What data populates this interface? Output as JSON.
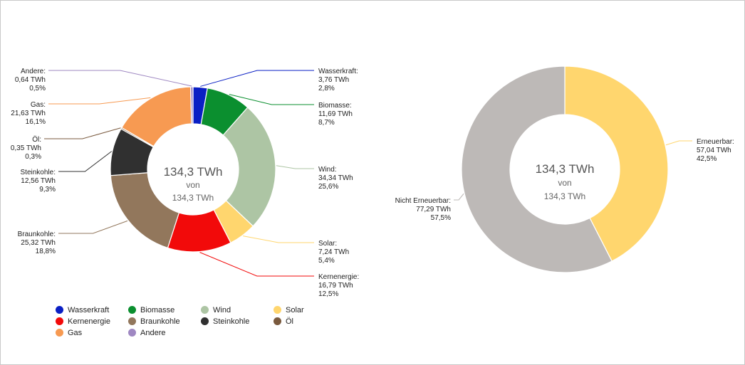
{
  "chart_data": [
    {
      "type": "pie",
      "variant": "donut",
      "total_label": "134,3 TWh",
      "of_label": "von",
      "of_total_label": "134,3 TWh",
      "unit": "TWh",
      "slices": [
        {
          "name": "Wasserkraft",
          "value": 3.76,
          "value_label": "3,76 TWh",
          "percent_label": "2,8%",
          "color": "#0a1fc4"
        },
        {
          "name": "Biomasse",
          "value": 11.69,
          "value_label": "11,69 TWh",
          "percent_label": "8,7%",
          "color": "#0b8f2f"
        },
        {
          "name": "Wind",
          "value": 34.34,
          "value_label": "34,34 TWh",
          "percent_label": "25,6%",
          "color": "#adc5a4"
        },
        {
          "name": "Solar",
          "value": 7.24,
          "value_label": "7,24 TWh",
          "percent_label": "5,4%",
          "color": "#ffd66e"
        },
        {
          "name": "Kernenergie",
          "value": 16.79,
          "value_label": "16,79 TWh",
          "percent_label": "12,5%",
          "color": "#f20a0a"
        },
        {
          "name": "Braunkohle",
          "value": 25.32,
          "value_label": "25,32 TWh",
          "percent_label": "18,8%",
          "color": "#92775c"
        },
        {
          "name": "Steinkohle",
          "value": 12.56,
          "value_label": "12,56 TWh",
          "percent_label": "9,3%",
          "color": "#303030"
        },
        {
          "name": "Öl",
          "value": 0.35,
          "value_label": "0,35 TWh",
          "percent_label": "0,3%",
          "color": "#7a5a3e"
        },
        {
          "name": "Gas",
          "value": 21.63,
          "value_label": "21,63 TWh",
          "percent_label": "16,1%",
          "color": "#f79a52"
        },
        {
          "name": "Andere",
          "value": 0.64,
          "value_label": "0,64 TWh",
          "percent_label": "0,5%",
          "color": "#9f88c2"
        }
      ],
      "legend": {
        "placement": "bottom",
        "items": [
          {
            "name": "Wasserkraft",
            "color": "#0a1fc4"
          },
          {
            "name": "Biomasse",
            "color": "#0b8f2f"
          },
          {
            "name": "Wind",
            "color": "#adc5a4"
          },
          {
            "name": "Solar",
            "color": "#ffd66e"
          },
          {
            "name": "Kernenergie",
            "color": "#f20a0a"
          },
          {
            "name": "Braunkohle",
            "color": "#92775c"
          },
          {
            "name": "Steinkohle",
            "color": "#303030"
          },
          {
            "name": "Öl",
            "color": "#7a5a3e"
          },
          {
            "name": "Gas",
            "color": "#f79a52"
          },
          {
            "name": "Andere",
            "color": "#9f88c2"
          }
        ]
      }
    },
    {
      "type": "pie",
      "variant": "donut",
      "total_label": "134,3 TWh",
      "of_label": "von",
      "of_total_label": "134,3 TWh",
      "unit": "TWh",
      "slices": [
        {
          "name": "Erneuerbar",
          "value": 57.04,
          "value_label": "57,04 TWh",
          "percent_label": "42,5%",
          "color": "#ffd66e"
        },
        {
          "name": "Nicht Erneuerbar",
          "value": 77.29,
          "value_label": "77,29 TWh",
          "percent_label": "57,5%",
          "color": "#bdb9b7"
        }
      ]
    }
  ]
}
